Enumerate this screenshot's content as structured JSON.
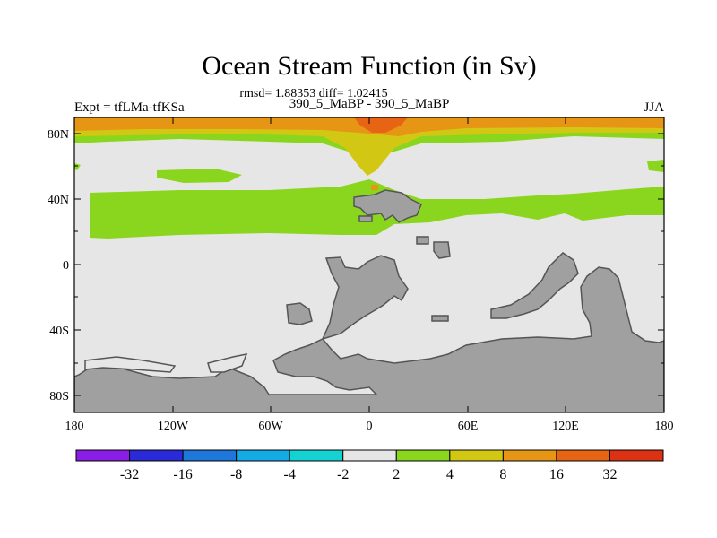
{
  "title": "Ocean Stream Function (in Sv)",
  "stats": "rmsd= 1.88353 diff= 1.02415",
  "left_label": "Expt = tfLMa-tfKSa",
  "center_label": "390_5_MaBP - 390_5_MaBP",
  "right_label": "JJA",
  "lat_ticks": [
    "80N",
    "40N",
    "0",
    "40S",
    "80S"
  ],
  "lon_ticks": [
    "180",
    "120W",
    "60W",
    "0",
    "60E",
    "120E",
    "180"
  ],
  "colorbar": {
    "labels": [
      "-32",
      "-16",
      "-8",
      "-4",
      "-2",
      "2",
      "4",
      "8",
      "16",
      "32"
    ],
    "colors": [
      "#8a1ee6",
      "#2a2ad8",
      "#1e78dc",
      "#14aae6",
      "#14d2d2",
      "#e6e6e6",
      "#8ad61e",
      "#d2c814",
      "#e69614",
      "#e66414",
      "#dc3214"
    ]
  },
  "map_colors": {
    "background": "#e6e6e6",
    "land": "#a0a0a0",
    "band_4": "#8ad61e",
    "band_8": "#d2c814",
    "band_16": "#e69614",
    "band_32": "#e66414"
  }
}
